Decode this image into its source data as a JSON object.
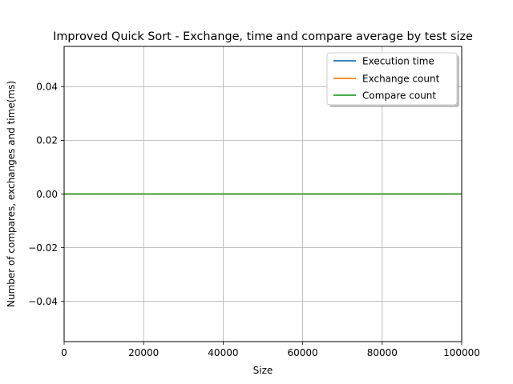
{
  "chart_data": {
    "type": "line",
    "title": "Improved Quick Sort - Exchange, time and compare average by test size",
    "xlabel": "Size",
    "ylabel": "Number of compares, exchanges and time(ms)",
    "xlim": [
      0,
      100000
    ],
    "ylim": [
      -0.055,
      0.055
    ],
    "x_ticks": [
      0,
      20000,
      40000,
      60000,
      80000,
      100000
    ],
    "x_tick_labels": [
      "0",
      "20000",
      "40000",
      "60000",
      "80000",
      "100000"
    ],
    "y_ticks": [
      -0.04,
      -0.02,
      0.0,
      0.02,
      0.04
    ],
    "y_tick_labels": [
      "−0.04",
      "−0.02",
      "0.00",
      "0.02",
      "0.04"
    ],
    "grid": true,
    "legend_position": "top-right",
    "series": [
      {
        "name": "Execution time",
        "color": "#1f77b4",
        "x": [
          0,
          100000
        ],
        "y": [
          0,
          0
        ]
      },
      {
        "name": "Exchange count",
        "color": "#ff7f0e",
        "x": [
          0,
          100000
        ],
        "y": [
          0,
          0
        ]
      },
      {
        "name": "Compare count",
        "color": "#2ca02c",
        "x": [
          0,
          100000
        ],
        "y": [
          0,
          0
        ]
      }
    ]
  }
}
